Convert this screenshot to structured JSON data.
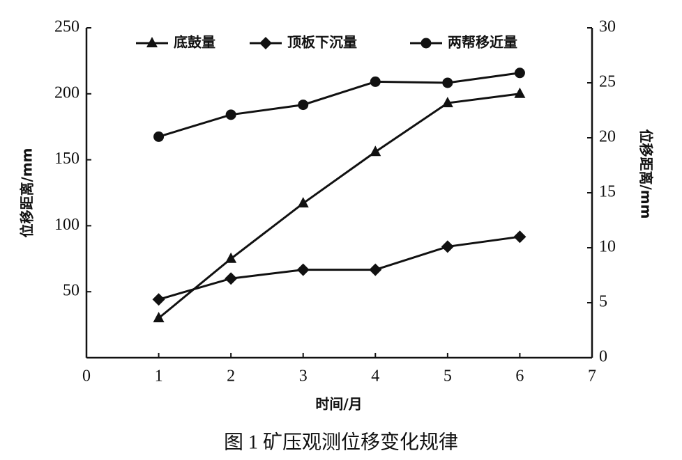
{
  "chart_data": {
    "type": "line",
    "x_label": "时间/月",
    "y_label": "位移距离/mm",
    "y2_label": "位移距离/mm",
    "caption": "图 1 矿压观测位移变化规律",
    "x": [
      1,
      2,
      3,
      4,
      5,
      6
    ],
    "xlim": [
      0,
      7
    ],
    "xticks": [
      0,
      1,
      2,
      3,
      4,
      5,
      6,
      7
    ],
    "ylim": [
      0,
      250
    ],
    "yticks": [
      50,
      100,
      150,
      200,
      250
    ],
    "y2lim": [
      0,
      30
    ],
    "y2ticks": [
      0,
      5,
      10,
      15,
      20,
      25,
      30
    ],
    "legend": "top",
    "series": [
      {
        "name": "底鼓量",
        "color": "#111111",
        "marker": "triangle",
        "values": [
          30,
          75,
          117,
          156,
          193,
          200
        ]
      },
      {
        "name": "顶板下沉量",
        "color": "#111111",
        "marker": "diamond",
        "axis": "y2",
        "values": [
          5.3,
          7.2,
          8.0,
          8.0,
          10.1,
          11.0
        ]
      },
      {
        "name": "两帮移近量",
        "color": "#111111",
        "marker": "circle",
        "axis": "y2",
        "values": [
          20.1,
          22.1,
          23.0,
          25.1,
          25.0,
          25.9
        ]
      }
    ]
  }
}
